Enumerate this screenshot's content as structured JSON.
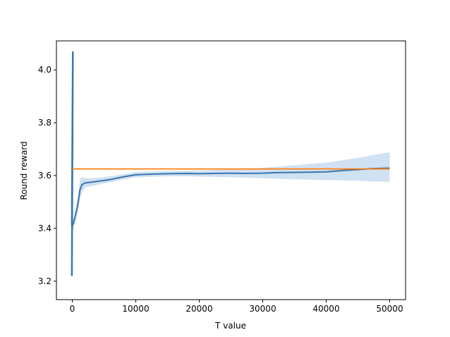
{
  "chart_data": {
    "type": "line",
    "title": "",
    "xlabel": "T value",
    "ylabel": "Round reward",
    "xlim": [
      -2500,
      52500
    ],
    "ylim": [
      3.13,
      4.11
    ],
    "xticks": [
      0,
      10000,
      20000,
      30000,
      40000,
      50000
    ],
    "xtick_labels": [
      "0",
      "10000",
      "20000",
      "30000",
      "40000",
      "50000"
    ],
    "yticks": [
      3.2,
      3.4,
      3.6,
      3.8,
      4.0
    ],
    "ytick_labels": [
      "3.2",
      "3.4",
      "3.6",
      "3.8",
      "4.0"
    ],
    "grid": false,
    "legend": "none",
    "colors": {
      "mean": "#3a75b0",
      "band": "#aac8e6",
      "reference": "#ff7f0e",
      "spine": "#000000"
    },
    "series": [
      {
        "kind": "spike",
        "x": [
          0,
          0,
          0,
          0,
          0
        ],
        "y": [
          3.22,
          4.07,
          3.22,
          4.07,
          3.41
        ]
      },
      {
        "kind": "mean_with_band",
        "x": [
          0,
          200,
          500,
          800,
          1000,
          1200,
          1500,
          2000,
          3000,
          4000,
          6000,
          8000,
          10000,
          12000,
          15000,
          18000,
          20000,
          22000,
          25000,
          27000,
          30000,
          32000,
          35000,
          38000,
          40000,
          42000,
          44000,
          46000,
          47000,
          48000,
          50000
        ],
        "y": [
          3.41,
          3.42,
          3.45,
          3.48,
          3.51,
          3.545,
          3.565,
          3.572,
          3.575,
          3.578,
          3.585,
          3.595,
          3.603,
          3.605,
          3.607,
          3.608,
          3.607,
          3.608,
          3.609,
          3.608,
          3.609,
          3.611,
          3.612,
          3.613,
          3.614,
          3.618,
          3.621,
          3.624,
          3.626,
          3.627,
          3.628
        ],
        "lower": [
          3.39,
          3.4,
          3.43,
          3.45,
          3.48,
          3.51,
          3.535,
          3.555,
          3.56,
          3.565,
          3.575,
          3.585,
          3.593,
          3.595,
          3.597,
          3.597,
          3.596,
          3.595,
          3.594,
          3.592,
          3.59,
          3.588,
          3.586,
          3.584,
          3.583,
          3.582,
          3.581,
          3.579,
          3.578,
          3.577,
          3.575
        ],
        "upper": [
          3.43,
          3.44,
          3.47,
          3.51,
          3.54,
          3.585,
          3.595,
          3.59,
          3.59,
          3.592,
          3.597,
          3.605,
          3.613,
          3.615,
          3.617,
          3.619,
          3.619,
          3.621,
          3.624,
          3.625,
          3.629,
          3.633,
          3.639,
          3.645,
          3.649,
          3.656,
          3.663,
          3.671,
          3.676,
          3.681,
          3.688
        ]
      },
      {
        "kind": "reference",
        "x": [
          0,
          50000
        ],
        "y": [
          3.625,
          3.625
        ]
      }
    ]
  }
}
